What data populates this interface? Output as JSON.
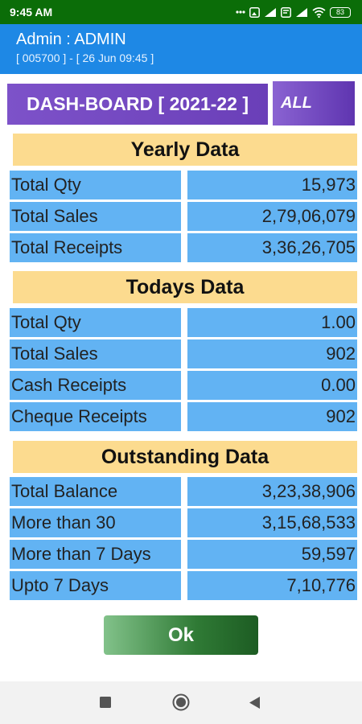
{
  "status": {
    "time": "9:45 AM",
    "battery": "83"
  },
  "header": {
    "title": "Admin : ADMIN",
    "subtitle": "[ 005700 ] - [ 26 Jun 09:45 ]"
  },
  "dashboard": {
    "title": "DASH-BOARD [ 2021-22 ]",
    "filter": "ALL"
  },
  "sections": [
    {
      "title": "Yearly Data",
      "rows": [
        {
          "label": "Total Qty",
          "value": "15,973"
        },
        {
          "label": "Total Sales",
          "value": "2,79,06,079"
        },
        {
          "label": "Total Receipts",
          "value": "3,36,26,705"
        }
      ]
    },
    {
      "title": "Todays Data",
      "rows": [
        {
          "label": "Total Qty",
          "value": "1.00"
        },
        {
          "label": "Total Sales",
          "value": "902"
        },
        {
          "label": "Cash Receipts",
          "value": "0.00"
        },
        {
          "label": "Cheque Receipts",
          "value": "902"
        }
      ]
    },
    {
      "title": "Outstanding Data",
      "rows": [
        {
          "label": "Total Balance",
          "value": "3,23,38,906"
        },
        {
          "label": "More than 30",
          "value": "3,15,68,533"
        },
        {
          "label": "More than 7 Days",
          "value": "59,597"
        },
        {
          "label": "Upto 7 Days",
          "value": "7,10,776"
        }
      ]
    }
  ],
  "actions": {
    "ok_label": "Ok"
  },
  "colors": {
    "status_bar": "#0b6d08",
    "app_bar": "#1e88e5",
    "section_header": "#fcdb8f",
    "cell": "#62b3f3",
    "dashboard_title": "#6a3fb8",
    "ok_button": "#2f7a35"
  },
  "icons": {
    "status": [
      "gallery-icon",
      "messaging-icon",
      "signal-icon",
      "wifi-icon",
      "battery-icon"
    ],
    "nav": [
      "recents-icon",
      "home-icon",
      "back-icon"
    ]
  }
}
